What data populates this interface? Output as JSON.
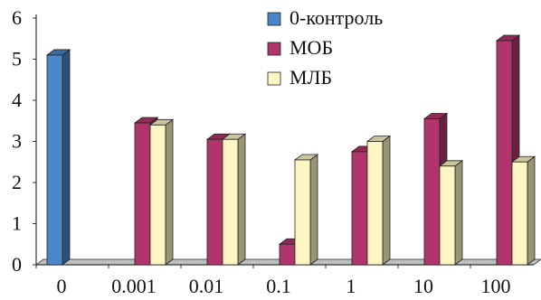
{
  "chart_data": {
    "type": "bar",
    "categories": [
      "0",
      "0.001",
      "0.01",
      "0.1",
      "1",
      "10",
      "100"
    ],
    "series": [
      {
        "name": "0-контроль",
        "values": [
          5.1,
          null,
          null,
          null,
          null,
          null,
          null
        ],
        "color": "#4a86c8"
      },
      {
        "name": "МОБ",
        "values": [
          null,
          3.45,
          3.05,
          0.5,
          2.75,
          3.55,
          5.45
        ],
        "color": "#b0356a"
      },
      {
        "name": "МЛБ",
        "values": [
          null,
          3.4,
          3.05,
          2.55,
          3.0,
          2.4,
          2.5
        ],
        "color": "#fdf6c3"
      }
    ],
    "ylim": [
      0,
      6
    ],
    "yticks": [
      "0",
      "1",
      "2",
      "3",
      "4",
      "5",
      "6"
    ],
    "grid": false,
    "legend_position": "top-right",
    "style": "3d"
  }
}
